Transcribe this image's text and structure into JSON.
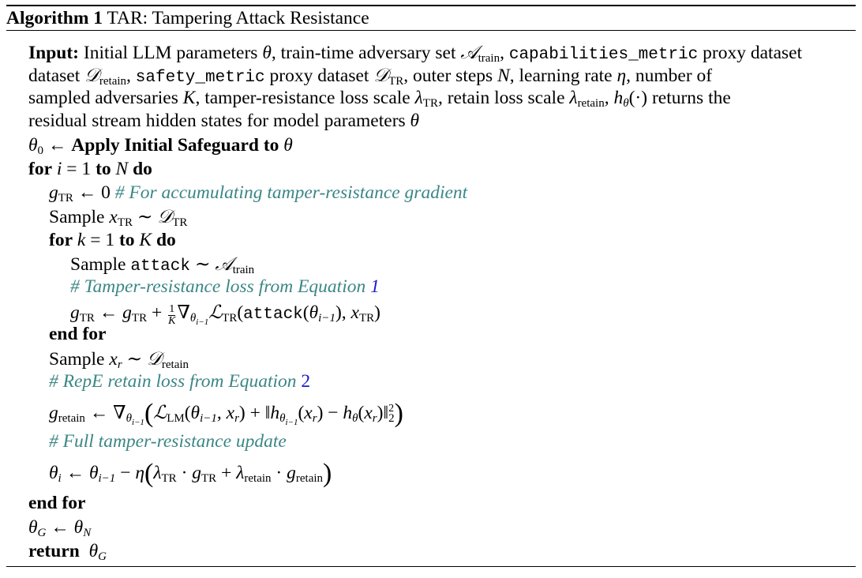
{
  "algorithm": {
    "label": "Algorithm 1",
    "title": "TAR: Tampering Attack Resistance"
  },
  "input": {
    "label": "Input:",
    "p1": "Initial LLM parameters",
    "p2": ", train-time adversary set",
    "cap_metric": "capabilities_metric",
    "p3": "proxy dataset",
    "safety_metric": "safety_metric",
    "p4": "proxy dataset",
    "p5": ", outer steps",
    "p6": ", learning rate",
    "p7": ", number of sampled adversaries",
    "p8": ", tamper-resistance loss scale",
    "p9": ", retain loss scale",
    "p10": "returns the residual stream hidden states for model parameters"
  },
  "keywords": {
    "apply": "Apply Initial Safeguard to",
    "for": "for",
    "to": "to",
    "do": "do",
    "end_for": "end for",
    "return": "return",
    "sample": "Sample",
    "attack": "attack"
  },
  "comments": {
    "accumulate": "# For accumulating tamper-resistance gradient",
    "tr_loss": "# Tamper-resistance loss from Equation",
    "tr_loss_ref": "1",
    "repe": "# RepE retain loss from Equation",
    "repe_ref": "2",
    "full": "# Full tamper-resistance update"
  },
  "subscripts": {
    "train": "train",
    "retain": "retain",
    "tr": "TR",
    "lm": "LM"
  }
}
